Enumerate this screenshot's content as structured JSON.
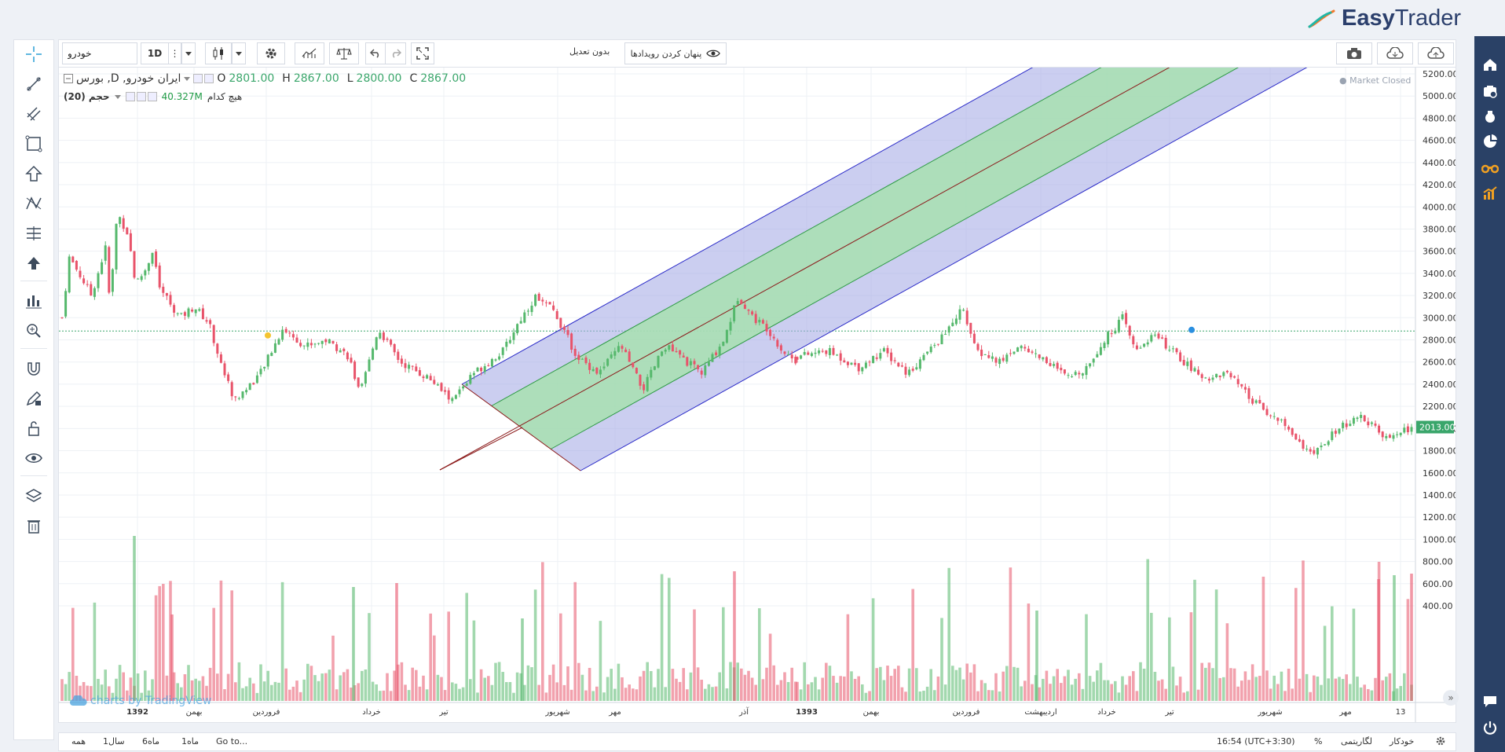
{
  "brand": {
    "name_bold": "Easy",
    "name_regular": "Trader"
  },
  "toolbar": {
    "symbol_value": "خودرو",
    "interval": "1D",
    "adjustment": "بدون تعدیل",
    "hide_events": "پنهان کردن رویدادها"
  },
  "legend": {
    "title": "ایران خودرو, D, بورس",
    "open_label": "O",
    "open": "2801.00",
    "high_label": "H",
    "high": "2867.00",
    "low_label": "L",
    "low": "2800.00",
    "close_label": "C",
    "close": "2867.00",
    "volume_label": "حجم (20)",
    "volume_value": "40.327M",
    "volume_extra": "هیچ کدام"
  },
  "market_status": "Market Closed",
  "watermark": "charts by TradingView",
  "current_price_label": "2013.00",
  "bottom": {
    "ranges": [
      "همه",
      "1سال",
      "6ماه",
      "1ماه",
      "Go to..."
    ],
    "time": "16:54 (UTC+3:30)",
    "percent": "%",
    "log": "لگاریتمی",
    "auto": "خودکار"
  },
  "colors": {
    "up": "#55b86c",
    "down": "#e8536a",
    "channel_outer": "#a9aee6",
    "channel_inner": "#a8e0b0",
    "channel_border": "#2a2ac8",
    "channel_green": "#2f9b46",
    "median": "#8b1a1a",
    "accent": "#2a4166"
  },
  "chart_data": {
    "type": "candlestick",
    "price_axis": [
      "5200.00",
      "5000.00",
      "4800.00",
      "4600.00",
      "4400.00",
      "4200.00",
      "4000.00",
      "3800.00",
      "3600.00",
      "3400.00",
      "3200.00",
      "3000.00",
      "2800.00",
      "2600.00",
      "2400.00",
      "2200.00",
      "2000.00",
      "1800.00",
      "1600.00",
      "1400.00",
      "1200.00",
      "1000.00",
      "800.00",
      "600.00",
      "400.00"
    ],
    "time_axis": [
      "1392",
      "بهمن",
      "فروردین",
      "خرداد",
      "تیر",
      "شهریور",
      "مهر",
      "آذر",
      "1393",
      "بهمن",
      "فروردین",
      "اردیبهشت",
      "خرداد",
      "تیر",
      "شهریور",
      "مهر",
      "13"
    ],
    "price_anchors": [
      {
        "t": 0.0,
        "p": 3000
      },
      {
        "t": 0.01,
        "p": 3550
      },
      {
        "t": 0.04,
        "p": 3200
      },
      {
        "t": 0.06,
        "p": 3650
      },
      {
        "t": 0.065,
        "p": 3100
      },
      {
        "t": 0.075,
        "p": 3950
      },
      {
        "t": 0.09,
        "p": 3750
      },
      {
        "t": 0.1,
        "p": 3300
      },
      {
        "t": 0.115,
        "p": 3450
      },
      {
        "t": 0.125,
        "p": 3650
      },
      {
        "t": 0.13,
        "p": 3300
      },
      {
        "t": 0.16,
        "p": 3000
      },
      {
        "t": 0.18,
        "p": 3100
      },
      {
        "t": 0.2,
        "p": 2950
      },
      {
        "t": 0.215,
        "p": 2600
      },
      {
        "t": 0.235,
        "p": 2250
      },
      {
        "t": 0.27,
        "p": 2500
      },
      {
        "t": 0.3,
        "p": 2900
      },
      {
        "t": 0.33,
        "p": 2750
      },
      {
        "t": 0.36,
        "p": 2800
      },
      {
        "t": 0.39,
        "p": 2650
      },
      {
        "t": 0.405,
        "p": 2300
      },
      {
        "t": 0.43,
        "p": 2900
      },
      {
        "t": 0.46,
        "p": 2600
      },
      {
        "t": 0.5,
        "p": 2450
      },
      {
        "t": 0.53,
        "p": 2250
      },
      {
        "t": 0.56,
        "p": 2500
      },
      {
        "t": 0.6,
        "p": 2700
      },
      {
        "t": 0.62,
        "p": 2950
      },
      {
        "t": 0.645,
        "p": 3200
      },
      {
        "t": 0.67,
        "p": 3050
      },
      {
        "t": 0.685,
        "p": 2850
      },
      {
        "t": 0.7,
        "p": 2650
      },
      {
        "t": 0.73,
        "p": 2500
      },
      {
        "t": 0.76,
        "p": 2750
      },
      {
        "t": 0.79,
        "p": 2350
      },
      {
        "t": 0.82,
        "p": 2750
      },
      {
        "t": 0.85,
        "p": 2600
      },
      {
        "t": 0.87,
        "p": 2500
      },
      {
        "t": 0.9,
        "p": 2800
      },
      {
        "t": 0.92,
        "p": 3200
      },
      {
        "t": 0.94,
        "p": 3000
      },
      {
        "t": 0.96,
        "p": 2900
      },
      {
        "t": 0.98,
        "p": 2700
      },
      {
        "t": 1.0,
        "p": 2600
      }
    ],
    "price_anchors_b": [
      {
        "t": 0.0,
        "p": 2650
      },
      {
        "t": 0.05,
        "p": 2700
      },
      {
        "t": 0.1,
        "p": 2550
      },
      {
        "t": 0.14,
        "p": 2700
      },
      {
        "t": 0.18,
        "p": 2500
      },
      {
        "t": 0.24,
        "p": 2850
      },
      {
        "t": 0.27,
        "p": 3100
      },
      {
        "t": 0.29,
        "p": 2700
      },
      {
        "t": 0.33,
        "p": 2600
      },
      {
        "t": 0.36,
        "p": 2750
      },
      {
        "t": 0.41,
        "p": 2600
      },
      {
        "t": 0.44,
        "p": 2450
      },
      {
        "t": 0.47,
        "p": 2550
      },
      {
        "t": 0.5,
        "p": 2800
      },
      {
        "t": 0.53,
        "p": 3000
      },
      {
        "t": 0.55,
        "p": 2700
      },
      {
        "t": 0.58,
        "p": 2850
      },
      {
        "t": 0.62,
        "p": 2650
      },
      {
        "t": 0.66,
        "p": 2450
      },
      {
        "t": 0.7,
        "p": 2500
      },
      {
        "t": 0.74,
        "p": 2250
      },
      {
        "t": 0.79,
        "p": 2050
      },
      {
        "t": 0.84,
        "p": 1750
      },
      {
        "t": 0.88,
        "p": 2000
      },
      {
        "t": 0.92,
        "p": 2100
      },
      {
        "t": 0.96,
        "p": 1900
      },
      {
        "t": 1.0,
        "p": 2013
      }
    ],
    "pitchfork": {
      "p0": {
        "t": 0.327,
        "p": 2250
      },
      "p1": {
        "t": 0.4,
        "p": 2250
      },
      "p2": {
        "t": 0.49,
        "p": 2900
      }
    }
  }
}
